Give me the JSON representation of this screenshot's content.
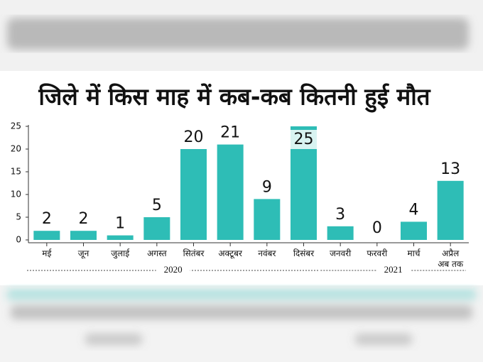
{
  "chart_data": {
    "type": "bar",
    "title": "जिले में किस माह में कब-कब कितनी हुई मौत",
    "categories": [
      "मई",
      "जून",
      "जुलाई",
      "अगस्त",
      "सितंबर",
      "अक्टूबर",
      "नवंबर",
      "दिसंबर",
      "जनवरी",
      "फरवरी",
      "मार्च",
      "अप्रैल\nअब तक"
    ],
    "values": [
      2,
      2,
      1,
      5,
      20,
      21,
      9,
      25,
      3,
      0,
      4,
      13
    ],
    "color": "#2ebdb6",
    "ylim": [
      0,
      25
    ],
    "yticks": [
      0,
      5,
      10,
      15,
      20,
      25
    ],
    "grid": false,
    "year_groups": [
      {
        "label": "2020",
        "first": 0,
        "last": 7
      },
      {
        "label": "2021",
        "first": 8,
        "last": 11
      }
    ]
  }
}
